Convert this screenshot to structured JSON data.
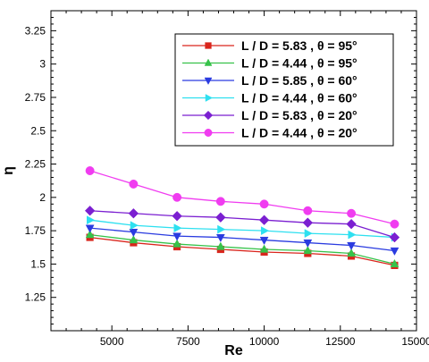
{
  "chart_data": {
    "type": "line",
    "xlabel": "Re",
    "ylabel": "η",
    "xlim": [
      3000,
      15000
    ],
    "ylim": [
      1.0,
      3.4
    ],
    "xticks": [
      5000,
      7500,
      10000,
      12500,
      15000
    ],
    "xtick_labels": [
      "5000",
      "7500",
      "10000",
      "12500",
      "15000"
    ],
    "yticks": [
      1.25,
      1.5,
      1.75,
      2.0,
      2.25,
      2.5,
      2.75,
      3.0,
      3.25
    ],
    "ytick_labels": [
      "1.25",
      "1.5",
      "1.75",
      "2",
      "2.25",
      "2.5",
      "2.75",
      "3",
      "3.25"
    ],
    "grid": false,
    "legend_position": "top-right",
    "x": [
      4280,
      5710,
      7140,
      8570,
      10000,
      11430,
      12860,
      14280
    ],
    "series": [
      {
        "name": "L / D = 5.83 , θ = 95°",
        "marker": "square",
        "color": "#d9251c",
        "values": [
          1.7,
          1.66,
          1.63,
          1.61,
          1.59,
          1.58,
          1.56,
          1.49
        ]
      },
      {
        "name": "L / D = 4.44 , θ = 95°",
        "marker": "triangle-up",
        "color": "#37c24a",
        "values": [
          1.72,
          1.68,
          1.65,
          1.63,
          1.61,
          1.6,
          1.58,
          1.5
        ]
      },
      {
        "name": "L / D = 5.85 , θ = 60°",
        "marker": "triangle-down",
        "color": "#2a3be0",
        "values": [
          1.77,
          1.74,
          1.71,
          1.7,
          1.68,
          1.66,
          1.64,
          1.6
        ]
      },
      {
        "name": "L / D = 4.44 , θ = 60°",
        "marker": "triangle-right",
        "color": "#2ee0f0",
        "values": [
          1.83,
          1.79,
          1.77,
          1.76,
          1.75,
          1.73,
          1.72,
          1.7
        ]
      },
      {
        "name": "L / D = 5.83 , θ = 20°",
        "marker": "diamond",
        "color": "#7b1fd1",
        "values": [
          1.9,
          1.88,
          1.86,
          1.85,
          1.83,
          1.81,
          1.8,
          1.7
        ]
      },
      {
        "name": "L / D = 4.44 , θ = 20°",
        "marker": "circle",
        "color": "#f03cf0",
        "values": [
          2.2,
          2.1,
          2.0,
          1.97,
          1.95,
          1.9,
          1.88,
          1.8
        ]
      }
    ]
  }
}
